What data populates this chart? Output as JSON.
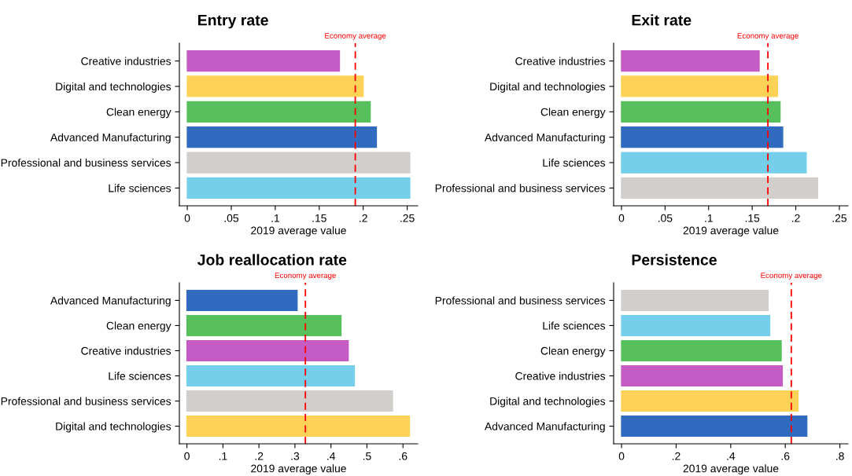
{
  "chart_data": [
    {
      "type": "bar",
      "orientation": "horizontal",
      "title": "Entry rate",
      "xlabel": "2019 average value",
      "categories": [
        "Creative industries",
        "Digital and technologies",
        "Clean energy",
        "Advanced Manufacturing",
        "Professional and business services",
        "Life sciences"
      ],
      "values": [
        0.173,
        0.2,
        0.208,
        0.215,
        0.253,
        0.253
      ],
      "colors": [
        "#c55cc5",
        "#fed256",
        "#57c05c",
        "#316bbf",
        "#d1cecb",
        "#75cfeb"
      ],
      "xlim": [
        -0.009,
        0.262
      ],
      "xticks": [
        0,
        {
          "value": 0.05,
          "label": ".05"
        },
        {
          "value": 0.1,
          "label": ".1"
        },
        {
          "value": 0.15,
          "label": ".15"
        },
        {
          "value": 0.2,
          "label": ".2"
        },
        {
          "value": 0.25,
          "label": ".25"
        }
      ],
      "ref_lines": [
        {
          "axis": "x",
          "value": 0.191,
          "label": "Economy average",
          "color": "#ff0000",
          "line_style": "dashed"
        }
      ]
    },
    {
      "type": "bar",
      "orientation": "horizontal",
      "title": "Exit rate",
      "xlabel": "2019 average value",
      "categories": [
        "Creative industries",
        "Digital and technologies",
        "Clean energy",
        "Advanced Manufacturing",
        "Life sciences",
        "Professional and business services"
      ],
      "values": [
        0.158,
        0.179,
        0.182,
        0.185,
        0.212,
        0.225
      ],
      "colors": [
        "#c55cc5",
        "#fed256",
        "#57c05c",
        "#316bbf",
        "#75cfeb",
        "#d1cecb"
      ],
      "xlim": [
        -0.009,
        0.26
      ],
      "xticks": [
        0,
        {
          "value": 0.05,
          "label": ".05"
        },
        {
          "value": 0.1,
          "label": ".1"
        },
        {
          "value": 0.15,
          "label": ".15"
        },
        {
          "value": 0.2,
          "label": ".2"
        },
        {
          "value": 0.25,
          "label": ".25"
        }
      ],
      "ref_lines": [
        {
          "axis": "x",
          "value": 0.168,
          "label": "Economy average",
          "color": "#ff0000",
          "line_style": "dashed"
        }
      ]
    },
    {
      "type": "bar",
      "orientation": "horizontal",
      "title": "Job reallocation rate",
      "xlabel": "2019 average value",
      "categories": [
        "Advanced Manufacturing",
        "Clean energy",
        "Creative industries",
        "Life sciences",
        "Professional and business services",
        "Digital and technologies"
      ],
      "values": [
        0.306,
        0.428,
        0.448,
        0.465,
        0.571,
        0.618
      ],
      "colors": [
        "#316bbf",
        "#57c05c",
        "#c55cc5",
        "#75cfeb",
        "#d1cecb",
        "#fed256"
      ],
      "xlim": [
        -0.021,
        0.641
      ],
      "xticks": [
        0,
        {
          "value": 0.1,
          "label": ".1"
        },
        {
          "value": 0.2,
          "label": ".2"
        },
        {
          "value": 0.3,
          "label": ".3"
        },
        {
          "value": 0.4,
          "label": ".4"
        },
        {
          "value": 0.5,
          "label": ".5"
        },
        {
          "value": 0.6,
          "label": ".6"
        }
      ],
      "ref_lines": [
        {
          "axis": "x",
          "value": 0.329,
          "label": "Economy average",
          "color": "#ff0000",
          "line_style": "dashed"
        }
      ]
    },
    {
      "type": "bar",
      "orientation": "horizontal",
      "title": "Persistence",
      "xlabel": "2019 average value",
      "categories": [
        "Professional and business services",
        "Life sciences",
        "Clean energy",
        "Creative industries",
        "Digital and technologies",
        "Advanced Manufacturing"
      ],
      "values": [
        0.537,
        0.543,
        0.585,
        0.589,
        0.647,
        0.679
      ],
      "colors": [
        "#d1cecb",
        "#75cfeb",
        "#57c05c",
        "#c55cc5",
        "#fed256",
        "#316bbf"
      ],
      "xlim": [
        -0.029,
        0.83
      ],
      "xticks": [
        0,
        {
          "value": 0.2,
          "label": ".2"
        },
        {
          "value": 0.4,
          "label": ".4"
        },
        {
          "value": 0.6,
          "label": ".6"
        },
        {
          "value": 0.8,
          "label": ".8"
        }
      ],
      "ref_lines": [
        {
          "axis": "x",
          "value": 0.622,
          "label": "Economy average",
          "color": "#ff0000",
          "line_style": "dashed"
        }
      ]
    }
  ]
}
